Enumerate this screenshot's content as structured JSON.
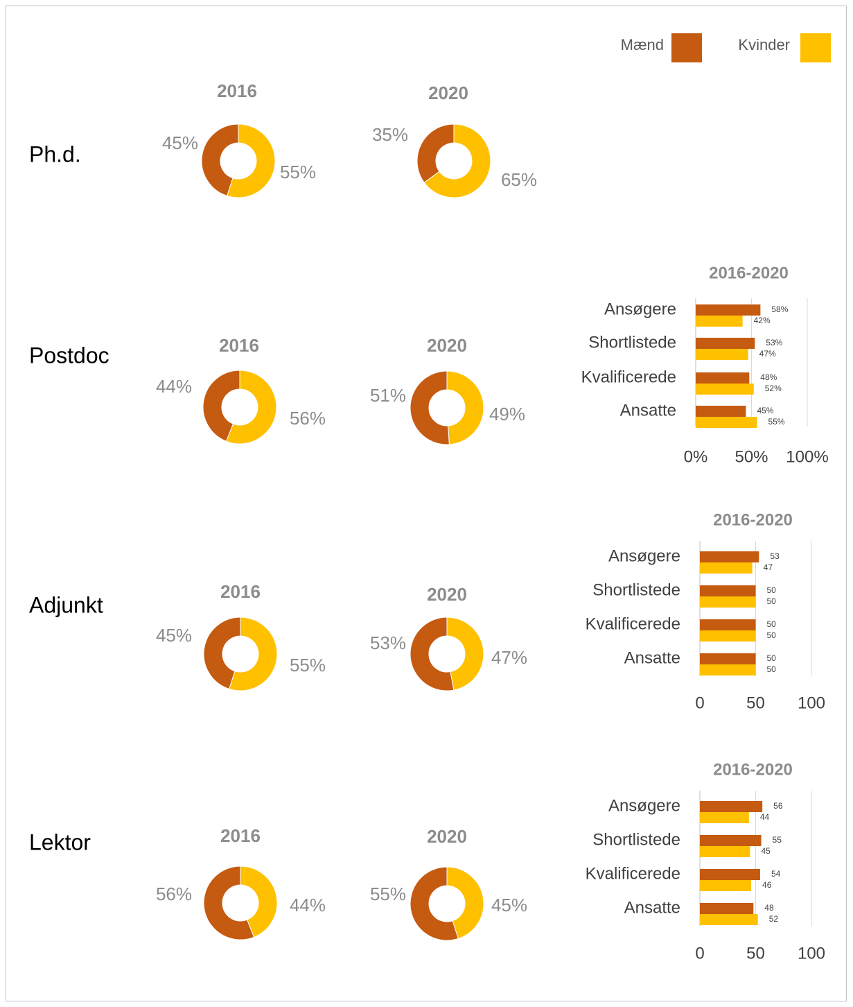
{
  "row_labels": [
    "Ph.d.",
    "Postdoc",
    "Adjunkt",
    "Lektor"
  ],
  "chart_data": [
    {
      "type": "pie",
      "title": "2016",
      "values": [
        45,
        55
      ],
      "value_labels": [
        "45%",
        "55%"
      ],
      "colors": [
        "#c55a11",
        "#ffc000"
      ]
    },
    {
      "type": "pie",
      "title": "2020",
      "values": [
        35,
        65
      ],
      "value_labels": [
        "35%",
        "65%"
      ],
      "colors": [
        "#c55a11",
        "#ffc000"
      ]
    },
    {
      "type": "pie",
      "title": "2016",
      "values": [
        44,
        56
      ],
      "value_labels": [
        "44%",
        "56%"
      ],
      "colors": [
        "#c55a11",
        "#ffc000"
      ]
    },
    {
      "type": "pie",
      "title": "2020",
      "values": [
        51,
        49
      ],
      "value_labels": [
        "51%",
        "49%"
      ],
      "colors": [
        "#c55a11",
        "#ffc000"
      ]
    },
    {
      "type": "pie",
      "title": "2016",
      "values": [
        45,
        55
      ],
      "value_labels": [
        "45%",
        "55%"
      ],
      "colors": [
        "#c55a11",
        "#ffc000"
      ]
    },
    {
      "type": "pie",
      "title": "2020",
      "values": [
        53,
        47
      ],
      "value_labels": [
        "53%",
        "47%"
      ],
      "colors": [
        "#c55a11",
        "#ffc000"
      ]
    },
    {
      "type": "pie",
      "title": "2016",
      "values": [
        56,
        44
      ],
      "value_labels": [
        "56%",
        "44%"
      ],
      "colors": [
        "#c55a11",
        "#ffc000"
      ]
    },
    {
      "type": "pie",
      "title": "2020",
      "values": [
        55,
        45
      ],
      "value_labels": [
        "55%",
        "45%"
      ],
      "colors": [
        "#c55a11",
        "#ffc000"
      ]
    },
    {
      "type": "bar",
      "orientation": "horizontal",
      "title": "2016-2020",
      "categories": [
        "Ansøgere",
        "Shortlistede",
        "Kvalificerede",
        "Ansatte"
      ],
      "series": [
        {
          "name": "Mænd",
          "color": "#c55a11",
          "values": [
            58,
            53,
            48,
            45
          ],
          "value_labels": [
            "58%",
            "53%",
            "48%",
            "45%"
          ]
        },
        {
          "name": "Kvinder",
          "color": "#ffc000",
          "values": [
            42,
            47,
            52,
            55
          ],
          "value_labels": [
            "42%",
            "47%",
            "52%",
            "55%"
          ]
        }
      ],
      "xlim": [
        0,
        100
      ],
      "xticks": [
        {
          "value": 0,
          "label": "0%"
        },
        {
          "value": 50,
          "label": "50%"
        },
        {
          "value": 100,
          "label": "100%"
        }
      ],
      "grid": true
    },
    {
      "type": "bar",
      "orientation": "horizontal",
      "title": "2016-2020",
      "categories": [
        "Ansøgere",
        "Shortlistede",
        "Kvalificerede",
        "Ansatte"
      ],
      "series": [
        {
          "color": "#c55a11",
          "values": [
            53,
            50,
            50,
            50
          ]
        },
        {
          "color": "#ffc000",
          "values": [
            47,
            50,
            50,
            50
          ]
        }
      ],
      "xlim": [
        0,
        100
      ],
      "xticks": [
        0,
        50,
        100
      ],
      "grid": true
    },
    {
      "type": "bar",
      "orientation": "horizontal",
      "title": "2016-2020",
      "categories": [
        "Ansøgere",
        "Shortlistede",
        "Kvalificerede",
        "Ansatte"
      ],
      "series": [
        {
          "color": "#c55a11",
          "values": [
            56,
            55,
            54,
            48
          ]
        },
        {
          "color": "#ffc000",
          "values": [
            44,
            45,
            46,
            52
          ]
        }
      ],
      "xlim": [
        0,
        100
      ],
      "xticks": [
        0,
        50,
        100
      ],
      "grid": true
    }
  ]
}
